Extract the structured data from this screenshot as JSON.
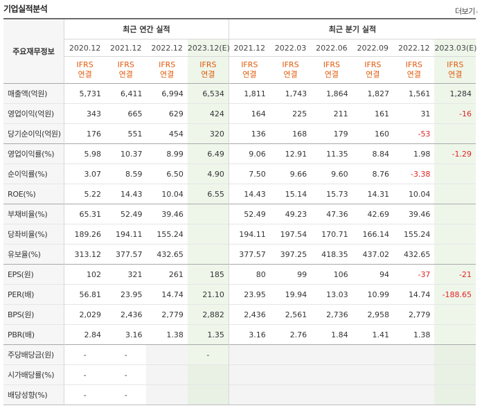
{
  "section_title": "기업실적분석",
  "more_link": "더보기",
  "more_arrow": "›",
  "row_header_label": "주요재무정보",
  "annual_group_label": "최근 연간 실적",
  "quarter_group_label": "최근 분기 실적",
  "periods": [
    "2020.12",
    "2021.12",
    "2022.12",
    "2023.12(E)",
    "2021.12",
    "2022.03",
    "2022.06",
    "2022.09",
    "2022.12",
    "2023.03(E)"
  ],
  "basis_line1": "IFRS",
  "basis_line2": "연결",
  "rows": [
    {
      "label": "매출액(억원)",
      "values": [
        "5,731",
        "6,411",
        "6,994",
        "6,534",
        "1,811",
        "1,743",
        "1,864",
        "1,827",
        "1,561",
        "1,284"
      ]
    },
    {
      "label": "영업이익(억원)",
      "values": [
        "343",
        "665",
        "629",
        "424",
        "164",
        "225",
        "211",
        "161",
        "31",
        "-16"
      ]
    },
    {
      "label": "당기순이익(억원)",
      "values": [
        "176",
        "551",
        "454",
        "320",
        "136",
        "168",
        "179",
        "160",
        "-53",
        ""
      ]
    },
    {
      "label": "영업이익률(%)",
      "values": [
        "5.98",
        "10.37",
        "8.99",
        "6.49",
        "9.06",
        "12.91",
        "11.35",
        "8.84",
        "1.98",
        "-1.29"
      ]
    },
    {
      "label": "순이익률(%)",
      "values": [
        "3.07",
        "8.59",
        "6.50",
        "4.90",
        "7.50",
        "9.66",
        "9.60",
        "8.76",
        "-3.38",
        ""
      ]
    },
    {
      "label": "ROE(%)",
      "values": [
        "5.22",
        "14.43",
        "10.04",
        "6.55",
        "14.43",
        "15.14",
        "15.73",
        "14.31",
        "10.04",
        ""
      ]
    },
    {
      "label": "부채비율(%)",
      "values": [
        "65.31",
        "52.49",
        "39.46",
        "",
        "52.49",
        "49.23",
        "47.36",
        "42.69",
        "39.46",
        ""
      ]
    },
    {
      "label": "당좌비율(%)",
      "values": [
        "189.26",
        "194.11",
        "155.24",
        "",
        "194.11",
        "197.54",
        "170.71",
        "166.14",
        "155.24",
        ""
      ]
    },
    {
      "label": "유보율(%)",
      "values": [
        "313.12",
        "377.57",
        "432.65",
        "",
        "377.57",
        "397.25",
        "418.35",
        "437.02",
        "432.65",
        ""
      ]
    },
    {
      "label": "EPS(원)",
      "values": [
        "102",
        "321",
        "261",
        "185",
        "80",
        "99",
        "106",
        "94",
        "-37",
        "-21"
      ]
    },
    {
      "label": "PER(배)",
      "values": [
        "56.81",
        "23.95",
        "14.74",
        "21.10",
        "23.95",
        "19.94",
        "13.03",
        "10.99",
        "14.74",
        "-188.65"
      ]
    },
    {
      "label": "BPS(원)",
      "values": [
        "2,029",
        "2,436",
        "2,779",
        "2,882",
        "2,436",
        "2,561",
        "2,736",
        "2,958",
        "2,779",
        ""
      ]
    },
    {
      "label": "PBR(배)",
      "values": [
        "2.84",
        "3.16",
        "1.38",
        "1.35",
        "3.16",
        "2.76",
        "1.84",
        "1.41",
        "1.38",
        ""
      ]
    },
    {
      "label": "주당배당금(원)",
      "values": [
        "-",
        "-",
        "",
        "-",
        "",
        "",
        "",
        "",
        "",
        ""
      ]
    },
    {
      "label": "시가배당률(%)",
      "values": [
        "-",
        "-",
        "",
        "",
        "",
        "",
        "",
        "",
        "",
        ""
      ]
    },
    {
      "label": "배당성향(%)",
      "values": [
        "-",
        "-",
        "",
        "",
        "",
        "",
        "",
        "",
        "",
        ""
      ]
    }
  ],
  "colors": {
    "negative": "#e32222",
    "basis": "#e05a0a",
    "estimate_bg": "#eef6ea",
    "label_bg": "#f6f6f6"
  }
}
